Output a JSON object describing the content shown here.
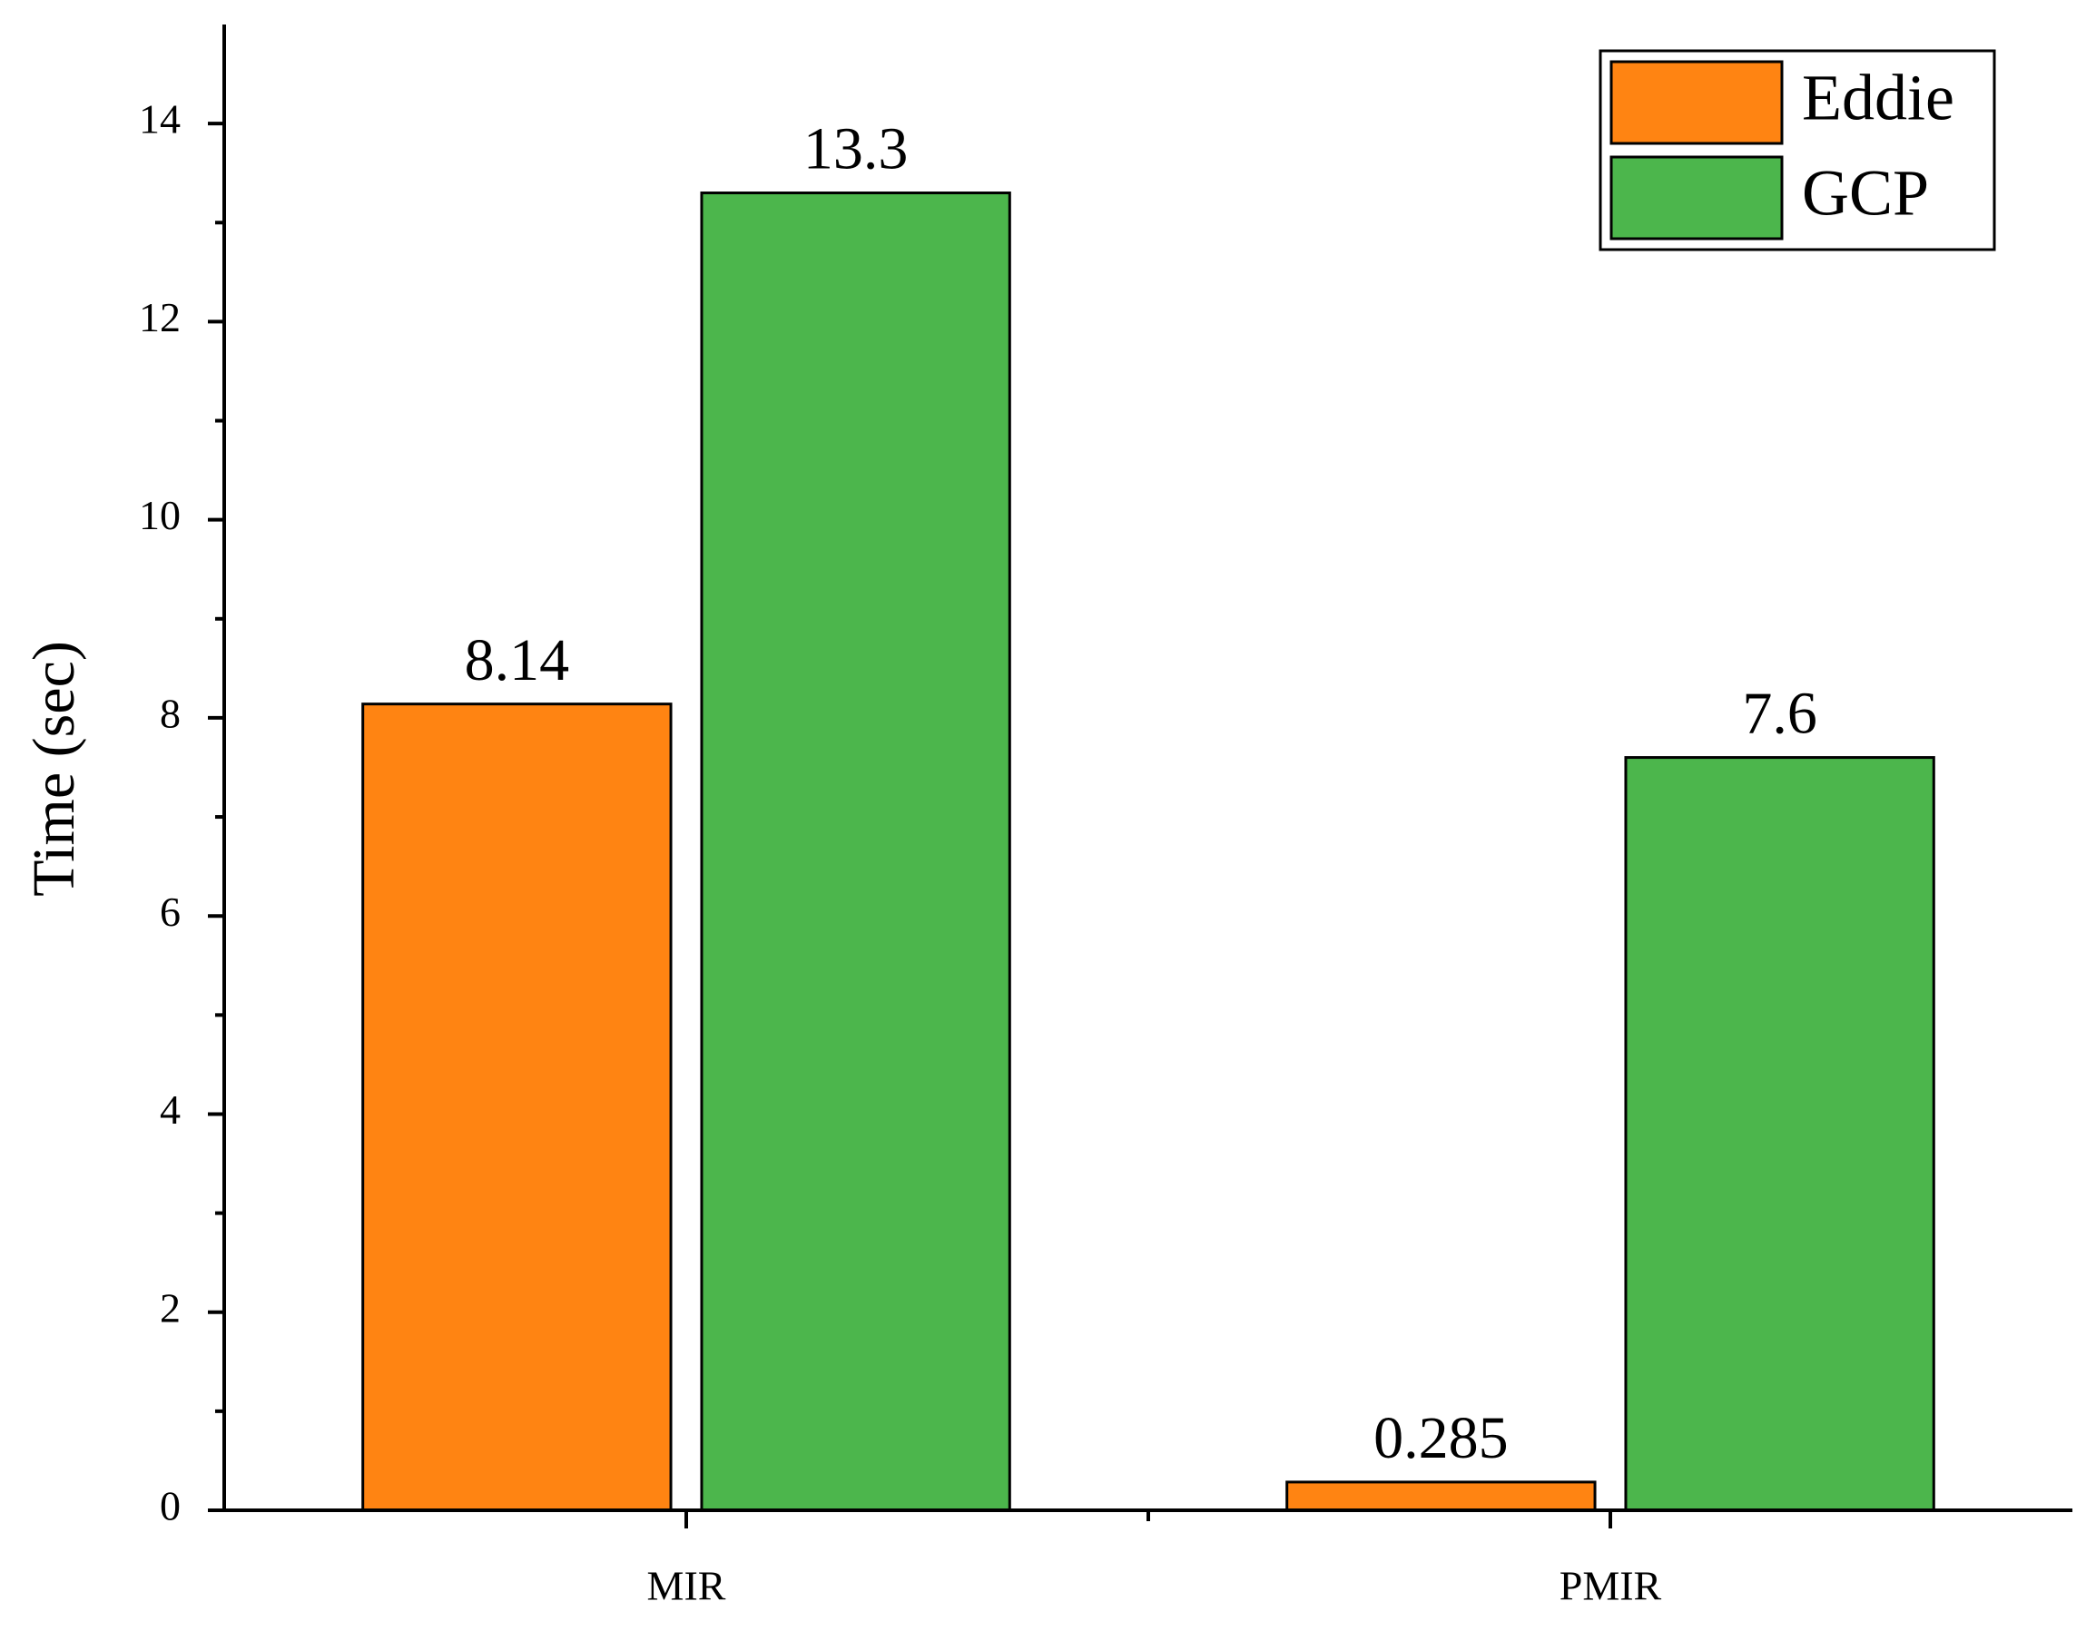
{
  "chart_data": {
    "type": "bar",
    "y_label": "Time (sec)",
    "categories": [
      "MIR",
      "PMIR"
    ],
    "series": [
      {
        "name": "Eddie",
        "color": "#ff8412",
        "values": [
          8.14,
          0.285
        ]
      },
      {
        "name": "GCP",
        "color": "#4cb64c",
        "values": [
          13.3,
          7.6
        ]
      }
    ],
    "ylim": [
      0,
      15
    ],
    "yticks": [
      0,
      2,
      4,
      6,
      8,
      10,
      12,
      14
    ],
    "legend": "upper right"
  }
}
